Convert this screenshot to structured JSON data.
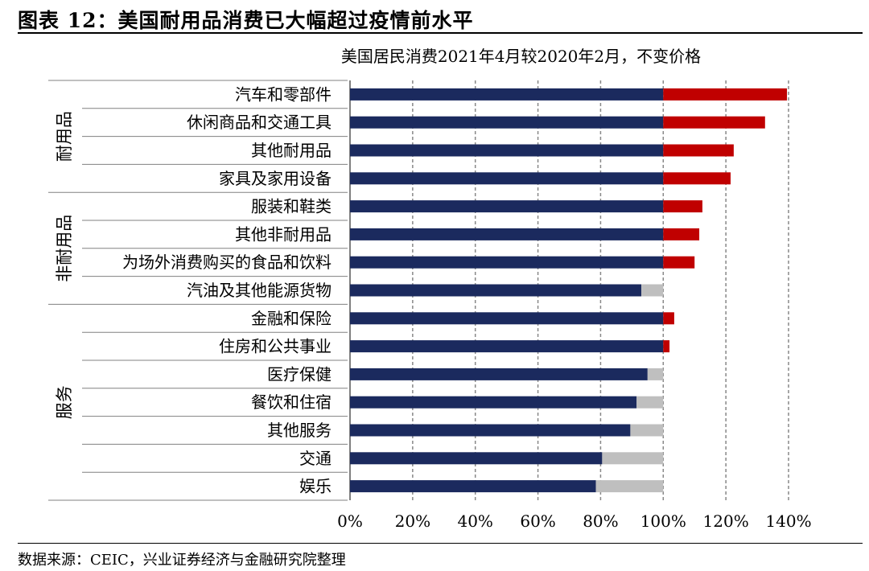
{
  "figure_title": "图表 12：美国耐用品消费已大幅超过疫情前水平",
  "source_note": "数据来源：CEIC，兴业证券经济与金融研究院整理",
  "colors": {
    "base_bar": "#1b2a5e",
    "excess_bar": "#c00000",
    "shortfall_bar": "#bfbfbf",
    "grid": "#888888"
  },
  "chart_data": {
    "type": "bar",
    "orientation": "horizontal",
    "title": "美国居民消费2021年4月较2020年2月，不变价格",
    "xlim": [
      0,
      140
    ],
    "xticks": [
      0,
      20,
      40,
      60,
      80,
      100,
      120,
      140
    ],
    "xtick_labels": [
      "0%",
      "20%",
      "40%",
      "60%",
      "80%",
      "100%",
      "120%",
      "140%"
    ],
    "grid": "vertical dashed",
    "groups": [
      {
        "name": "耐用品",
        "categories": [
          "汽车和零部件",
          "休闲商品和交通工具",
          "其他耐用品",
          "家具及家用设备"
        ]
      },
      {
        "name": "非耐用品",
        "categories": [
          "服装和鞋类",
          "其他非耐用品",
          "为场外消费购买的食品和饮料",
          "汽油及其他能源货物"
        ]
      },
      {
        "name": "服务",
        "categories": [
          "金融和保险",
          "住房和公共事业",
          "医疗保健",
          "餐饮和住宿",
          "其他服务",
          "交通",
          "娱乐"
        ]
      }
    ],
    "categories": [
      "汽车和零部件",
      "休闲商品和交通工具",
      "其他耐用品",
      "家具及家用设备",
      "服装和鞋类",
      "其他非耐用品",
      "为场外消费购买的食品和饮料",
      "汽油及其他能源货物",
      "金融和保险",
      "住房和公共事业",
      "医疗保健",
      "餐饮和住宿",
      "其他服务",
      "交通",
      "娱乐"
    ],
    "values": [
      139.5,
      132.5,
      122.5,
      121.5,
      112.5,
      111.5,
      110,
      93,
      103.5,
      102,
      95,
      91.5,
      89.5,
      80.5,
      78.5
    ]
  }
}
